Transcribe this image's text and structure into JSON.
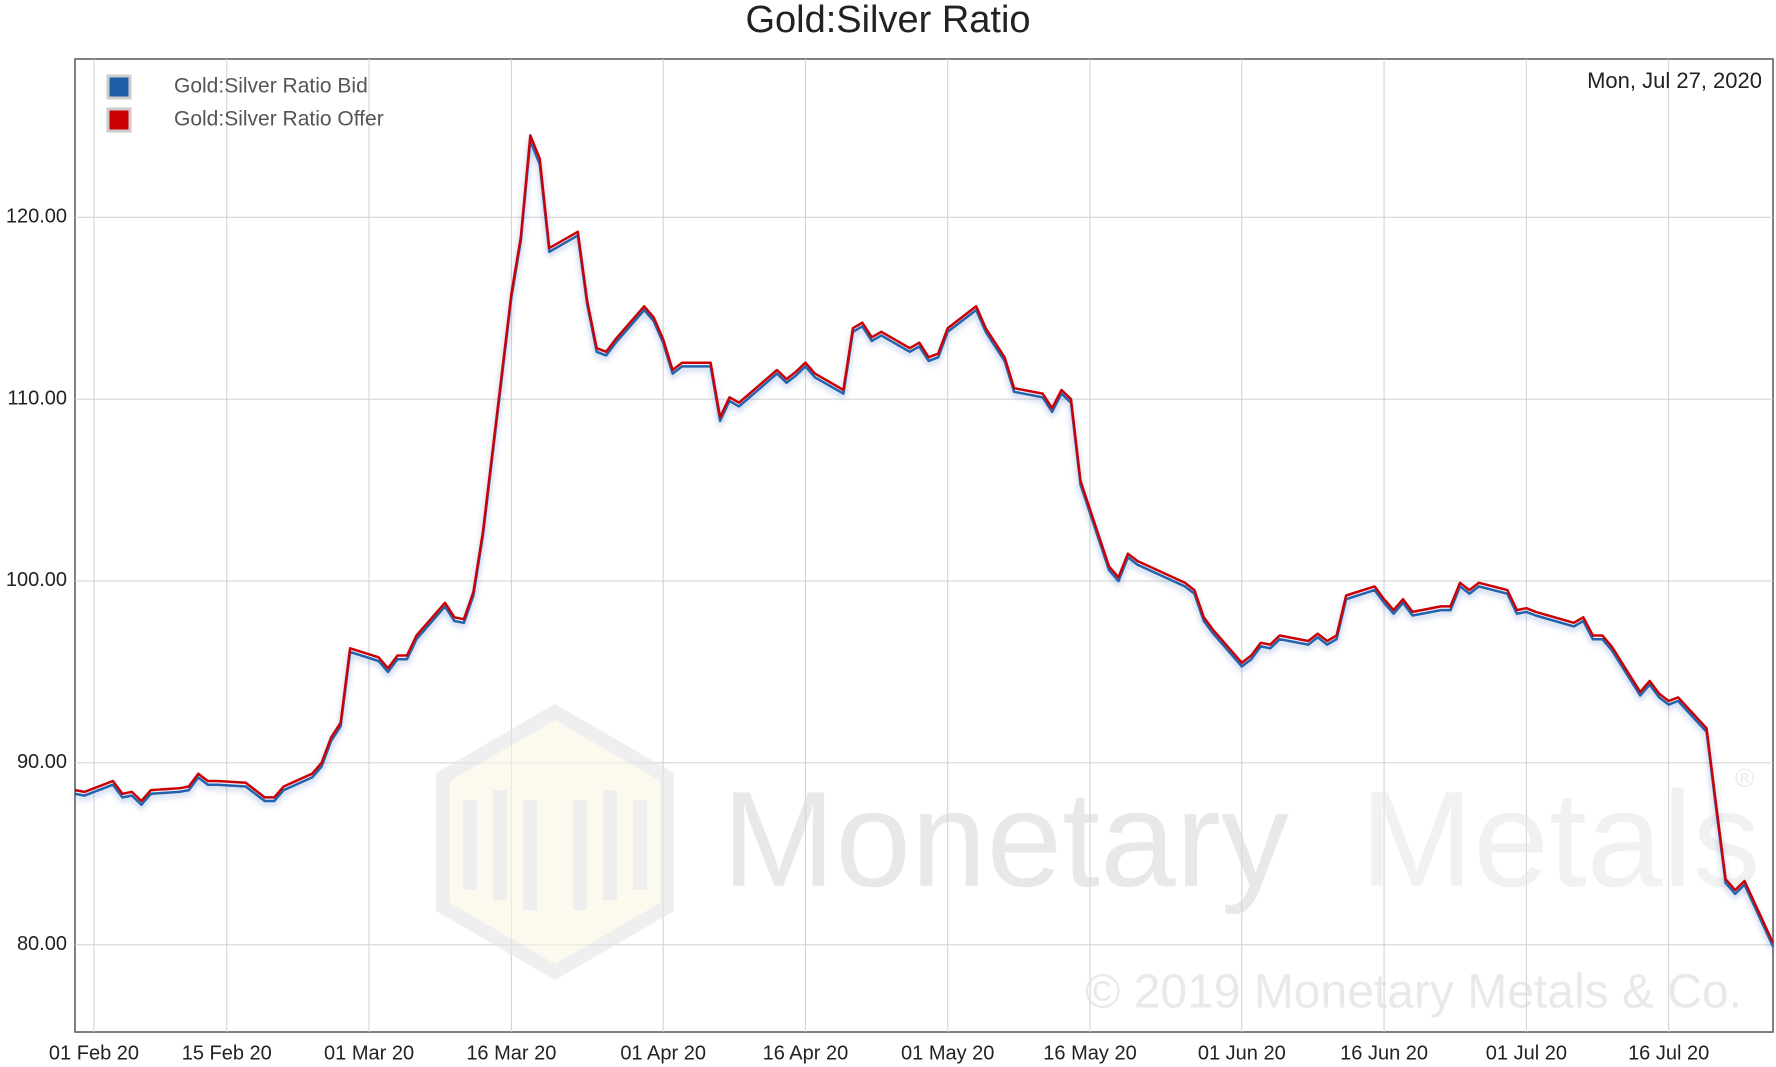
{
  "chart_data": {
    "type": "line",
    "title": "Gold:Silver Ratio",
    "annotation": "Mon, Jul 27, 2020",
    "x": [
      "2020-01-30",
      "2020-01-31",
      "2020-02-03",
      "2020-02-04",
      "2020-02-05",
      "2020-02-06",
      "2020-02-07",
      "2020-02-10",
      "2020-02-11",
      "2020-02-12",
      "2020-02-13",
      "2020-02-14",
      "2020-02-17",
      "2020-02-19",
      "2020-02-20",
      "2020-02-21",
      "2020-02-24",
      "2020-02-25",
      "2020-02-26",
      "2020-02-27",
      "2020-02-28",
      "2020-03-02",
      "2020-03-03",
      "2020-03-04",
      "2020-03-05",
      "2020-03-06",
      "2020-03-09",
      "2020-03-10",
      "2020-03-11",
      "2020-03-12",
      "2020-03-13",
      "2020-03-16",
      "2020-03-17",
      "2020-03-18",
      "2020-03-19",
      "2020-03-20",
      "2020-03-23",
      "2020-03-24",
      "2020-03-25",
      "2020-03-26",
      "2020-03-27",
      "2020-03-30",
      "2020-03-31",
      "2020-04-01",
      "2020-04-02",
      "2020-04-03",
      "2020-04-06",
      "2020-04-07",
      "2020-04-08",
      "2020-04-09",
      "2020-04-13",
      "2020-04-14",
      "2020-04-15",
      "2020-04-16",
      "2020-04-17",
      "2020-04-20",
      "2020-04-21",
      "2020-04-22",
      "2020-04-23",
      "2020-04-24",
      "2020-04-27",
      "2020-04-28",
      "2020-04-29",
      "2020-04-30",
      "2020-05-01",
      "2020-05-04",
      "2020-05-05",
      "2020-05-06",
      "2020-05-07",
      "2020-05-08",
      "2020-05-11",
      "2020-05-12",
      "2020-05-13",
      "2020-05-14",
      "2020-05-15",
      "2020-05-18",
      "2020-05-19",
      "2020-05-20",
      "2020-05-21",
      "2020-05-26",
      "2020-05-27",
      "2020-05-28",
      "2020-05-29",
      "2020-06-01",
      "2020-06-02",
      "2020-06-03",
      "2020-06-04",
      "2020-06-05",
      "2020-06-08",
      "2020-06-09",
      "2020-06-10",
      "2020-06-11",
      "2020-06-12",
      "2020-06-15",
      "2020-06-16",
      "2020-06-17",
      "2020-06-18",
      "2020-06-19",
      "2020-06-22",
      "2020-06-23",
      "2020-06-24",
      "2020-06-25",
      "2020-06-26",
      "2020-06-29",
      "2020-06-30",
      "2020-07-01",
      "2020-07-02",
      "2020-07-06",
      "2020-07-07",
      "2020-07-08",
      "2020-07-09",
      "2020-07-10",
      "2020-07-13",
      "2020-07-14",
      "2020-07-15",
      "2020-07-16",
      "2020-07-17",
      "2020-07-20",
      "2020-07-21",
      "2020-07-22",
      "2020-07-23",
      "2020-07-24",
      "2020-07-27"
    ],
    "series": [
      {
        "name": "Gold:Silver Ratio Bid",
        "color": "#1f5fa8",
        "values": [
          88.3,
          88.2,
          88.8,
          88.1,
          88.2,
          87.7,
          88.3,
          88.4,
          88.5,
          89.2,
          88.8,
          88.8,
          88.7,
          87.9,
          87.9,
          88.5,
          89.2,
          89.8,
          91.2,
          92.0,
          96.1,
          95.6,
          95.0,
          95.7,
          95.7,
          96.8,
          98.6,
          97.8,
          97.7,
          99.2,
          102.5,
          115.6,
          118.7,
          124.2,
          122.9,
          118.1,
          119.0,
          115.2,
          112.6,
          112.4,
          113.1,
          114.9,
          114.3,
          113.1,
          111.4,
          111.8,
          111.8,
          108.8,
          109.9,
          109.6,
          111.4,
          110.9,
          111.3,
          111.8,
          111.2,
          110.3,
          113.7,
          114.0,
          113.2,
          113.5,
          112.6,
          112.9,
          112.1,
          112.3,
          113.7,
          114.9,
          113.7,
          112.9,
          112.1,
          110.4,
          110.1,
          109.3,
          110.3,
          109.8,
          105.3,
          100.6,
          100.0,
          101.3,
          100.9,
          99.7,
          99.3,
          97.8,
          97.1,
          95.3,
          95.7,
          96.4,
          96.3,
          96.8,
          96.5,
          96.9,
          96.5,
          96.8,
          99.0,
          99.5,
          98.8,
          98.2,
          98.8,
          98.1,
          98.4,
          98.4,
          99.7,
          99.3,
          99.7,
          99.3,
          98.2,
          98.3,
          98.1,
          97.5,
          97.8,
          96.8,
          96.8,
          96.2,
          93.7,
          94.3,
          93.6,
          93.2,
          93.4,
          91.7,
          87.5,
          83.4,
          82.8,
          83.3,
          79.9
        ]
      },
      {
        "name": "Gold:Silver Ratio Offer",
        "color": "#cc0000",
        "values": [
          88.5,
          88.4,
          89.0,
          88.3,
          88.4,
          87.9,
          88.5,
          88.6,
          88.7,
          89.4,
          89.0,
          89.0,
          88.9,
          88.1,
          88.1,
          88.7,
          89.4,
          90.0,
          91.4,
          92.2,
          96.3,
          95.8,
          95.2,
          95.9,
          95.9,
          97.0,
          98.8,
          98.0,
          97.9,
          99.4,
          102.7,
          115.8,
          118.9,
          124.5,
          123.2,
          118.3,
          119.2,
          115.4,
          112.8,
          112.6,
          113.3,
          115.1,
          114.5,
          113.3,
          111.6,
          112.0,
          112.0,
          109.0,
          110.1,
          109.8,
          111.6,
          111.1,
          111.5,
          112.0,
          111.4,
          110.5,
          113.9,
          114.2,
          113.4,
          113.7,
          112.8,
          113.1,
          112.3,
          112.5,
          113.9,
          115.1,
          113.9,
          113.1,
          112.3,
          110.6,
          110.3,
          109.5,
          110.5,
          110.0,
          105.5,
          100.8,
          100.2,
          101.5,
          101.1,
          99.9,
          99.5,
          98.0,
          97.3,
          95.5,
          95.9,
          96.6,
          96.5,
          97.0,
          96.7,
          97.1,
          96.7,
          97.0,
          99.2,
          99.7,
          99.0,
          98.4,
          99.0,
          98.3,
          98.6,
          98.6,
          99.9,
          99.5,
          99.9,
          99.5,
          98.4,
          98.5,
          98.3,
          97.7,
          98.0,
          97.0,
          97.0,
          96.4,
          93.9,
          94.5,
          93.8,
          93.4,
          93.6,
          91.9,
          87.7,
          83.6,
          83.0,
          83.5,
          80.1
        ]
      }
    ],
    "xlim": [
      "2020-01-30",
      "2020-07-27"
    ],
    "xticks": [
      {
        "value": "2020-02-01",
        "label": "01 Feb 20"
      },
      {
        "value": "2020-02-15",
        "label": "15 Feb 20"
      },
      {
        "value": "2020-03-01",
        "label": "01 Mar 20"
      },
      {
        "value": "2020-03-16",
        "label": "16 Mar 20"
      },
      {
        "value": "2020-04-01",
        "label": "01 Apr 20"
      },
      {
        "value": "2020-04-16",
        "label": "16 Apr 20"
      },
      {
        "value": "2020-05-01",
        "label": "01 May 20"
      },
      {
        "value": "2020-05-16",
        "label": "16 May 20"
      },
      {
        "value": "2020-06-01",
        "label": "01 Jun 20"
      },
      {
        "value": "2020-06-16",
        "label": "16 Jun 20"
      },
      {
        "value": "2020-07-01",
        "label": "01 Jul 20"
      },
      {
        "value": "2020-07-16",
        "label": "16 Jul 20"
      }
    ],
    "ylim": [
      75.2,
      128.7
    ],
    "yticks": [
      {
        "value": 80,
        "label": "80.00"
      },
      {
        "value": 90,
        "label": "90.00"
      },
      {
        "value": 100,
        "label": "100.00"
      },
      {
        "value": 110,
        "label": "110.00"
      },
      {
        "value": 120,
        "label": "120.00"
      }
    ],
    "grid": true,
    "legend": "upper-left"
  },
  "watermark": {
    "brand_1": "Monetary",
    "brand_2": "Metals",
    "registered": "®",
    "copyright": "© 2019 Monetary Metals & Co."
  }
}
